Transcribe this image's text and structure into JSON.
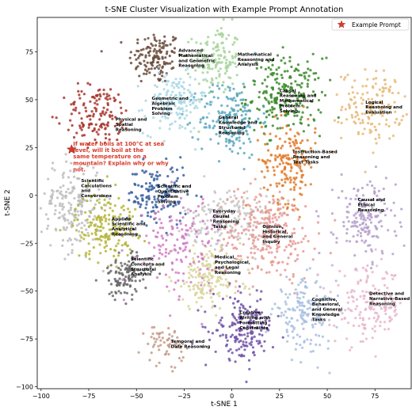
{
  "chart_data": {
    "type": "scatter",
    "title": "t-SNE Cluster Visualization with Example Prompt Annotation",
    "xlabel": "t-SNE 1",
    "ylabel": "t-SNE 2",
    "xlim": [
      -102,
      94
    ],
    "ylim": [
      -101,
      93
    ],
    "xticks": [
      -100,
      -75,
      -50,
      -25,
      0,
      25,
      50,
      75
    ],
    "yticks": [
      -100,
      -75,
      -50,
      -25,
      0,
      25,
      50,
      75
    ],
    "grid": false,
    "legend": {
      "position": "top-right",
      "entries": [
        "Example Prompt"
      ]
    },
    "clusters": [
      {
        "label": "Advanced Mathematical and Geometric Reasoning",
        "center": [
          -40,
          72
        ],
        "spread": [
          7,
          7
        ],
        "count": 140,
        "color": "#6b4a3a",
        "label_pos": [
          -28,
          75
        ]
      },
      {
        "label": "Mathematical Reasoning and Analysis",
        "center": [
          -8,
          71
        ],
        "spread": [
          6,
          9
        ],
        "count": 140,
        "color": "#a6d49a",
        "label_pos": [
          3,
          73
        ]
      },
      {
        "label": "Causal Reasoning and Mathematical Problem Solving",
        "center": [
          28,
          52
        ],
        "spread": [
          10,
          10
        ],
        "count": 230,
        "color": "#3a8a2a",
        "label_pos": [
          25,
          54
        ]
      },
      {
        "label": "Logical Reasoning and Evaluation",
        "center": [
          74,
          47
        ],
        "spread": [
          8,
          9
        ],
        "count": 150,
        "color": "#e8ba78",
        "label_pos": [
          70,
          48
        ]
      },
      {
        "label": "Geometric and Algebraic Problem Solving",
        "center": [
          -30,
          48
        ],
        "spread": [
          8,
          8
        ],
        "count": 160,
        "color": "#a9d8e4",
        "label_pos": [
          -42,
          50
        ]
      },
      {
        "label": "General Knowledge and Structured Reasoning",
        "center": [
          -1,
          40
        ],
        "spread": [
          8,
          10
        ],
        "count": 180,
        "color": "#5aa8bf",
        "label_pos": [
          -7,
          40
        ]
      },
      {
        "label": "Physical and Spatial Reasoning",
        "center": [
          -70,
          42
        ],
        "spread": [
          9,
          8
        ],
        "count": 140,
        "color": "#a6342a",
        "label_pos": [
          -61,
          39
        ]
      },
      {
        "label": "Instruction-Based Reasoning and Text Tasks",
        "center": [
          30,
          18
        ],
        "spread": [
          7,
          11
        ],
        "count": 180,
        "color": "#e07b2c",
        "label_pos": [
          32,
          22
        ]
      },
      {
        "label": "Scientific Calculations and Conversions",
        "center": [
          -84,
          -5
        ],
        "spread": [
          8,
          12
        ],
        "count": 200,
        "color": "#bdbdbd",
        "label_pos": [
          -79,
          7
        ]
      },
      {
        "label": "Scientific and Quantitative Problem Solving",
        "center": [
          -39,
          0
        ],
        "spread": [
          8,
          8
        ],
        "count": 150,
        "color": "#3a5fa0",
        "label_pos": [
          -39,
          4
        ]
      },
      {
        "label": "Applied Scientific and Analytical Reasoning",
        "center": [
          -66,
          -16
        ],
        "spread": [
          8,
          9
        ],
        "count": 180,
        "color": "#b5b53a",
        "label_pos": [
          -63,
          -13
        ]
      },
      {
        "label": "Everyday Causal Reasoning Tasks",
        "center": [
          -2,
          -12
        ],
        "spread": [
          11,
          8
        ],
        "count": 190,
        "color": "#c7c7c7",
        "label_pos": [
          -10,
          -9
        ]
      },
      {
        "label": "Opinion, Historical, and General Inquiry",
        "center": [
          18,
          -20
        ],
        "spread": [
          13,
          12
        ],
        "count": 260,
        "color": "#e89a94",
        "label_pos": [
          16,
          -17
        ]
      },
      {
        "label": "Causal and Ethical Reasoning",
        "center": [
          70,
          -13
        ],
        "spread": [
          8,
          10
        ],
        "count": 170,
        "color": "#b6a0cc",
        "label_pos": [
          66,
          -3
        ]
      },
      {
        "label": "Scientific Concepts and Structural Analysis",
        "center": [
          -56,
          -42
        ],
        "spread": [
          6,
          6
        ],
        "count": 110,
        "color": "#686868",
        "label_pos": [
          -53,
          -34
        ]
      },
      {
        "label": "Medical, Psychological, and Legal Reasoning",
        "center": [
          -13,
          -43
        ],
        "spread": [
          9,
          8
        ],
        "count": 160,
        "color": "#d8d59a",
        "label_pos": [
          -9,
          -33
        ]
      },
      {
        "label": "Cognitive, Behavioral, and General Knowledge Tasks",
        "center": [
          38,
          -62
        ],
        "spread": [
          8,
          9
        ],
        "count": 160,
        "color": "#a8bfe0",
        "label_pos": [
          42,
          -55
        ]
      },
      {
        "label": "Detective and Narrative-Based Reasoning",
        "center": [
          72,
          -58
        ],
        "spread": [
          9,
          10
        ],
        "count": 160,
        "color": "#e8b6cb",
        "label_pos": [
          72,
          -52
        ]
      },
      {
        "label": "Creative Writing with Formatting Constraints",
        "center": [
          6,
          -70
        ],
        "spread": [
          8,
          8
        ],
        "count": 190,
        "color": "#7253a8",
        "label_pos": [
          4,
          -62
        ]
      },
      {
        "label": "Temporal and Date Reasoning",
        "center": [
          -35,
          -78
        ],
        "spread": [
          5,
          5
        ],
        "count": 60,
        "color": "#c49b8a",
        "label_pos": [
          -32,
          -77
        ]
      },
      {
        "label": "",
        "center": [
          -28,
          -25
        ],
        "spread": [
          12,
          12
        ],
        "count": 150,
        "color": "#d07dc4",
        "label_pos": null
      }
    ],
    "annotation": {
      "text_lines": [
        "If water boils at 100°C at sea",
        "level, will it boil at the",
        "same temperature on a",
        "mountain? Explain why or why",
        "not."
      ],
      "marker": [
        -84,
        24
      ],
      "marker_color": "#d83a2a"
    }
  }
}
